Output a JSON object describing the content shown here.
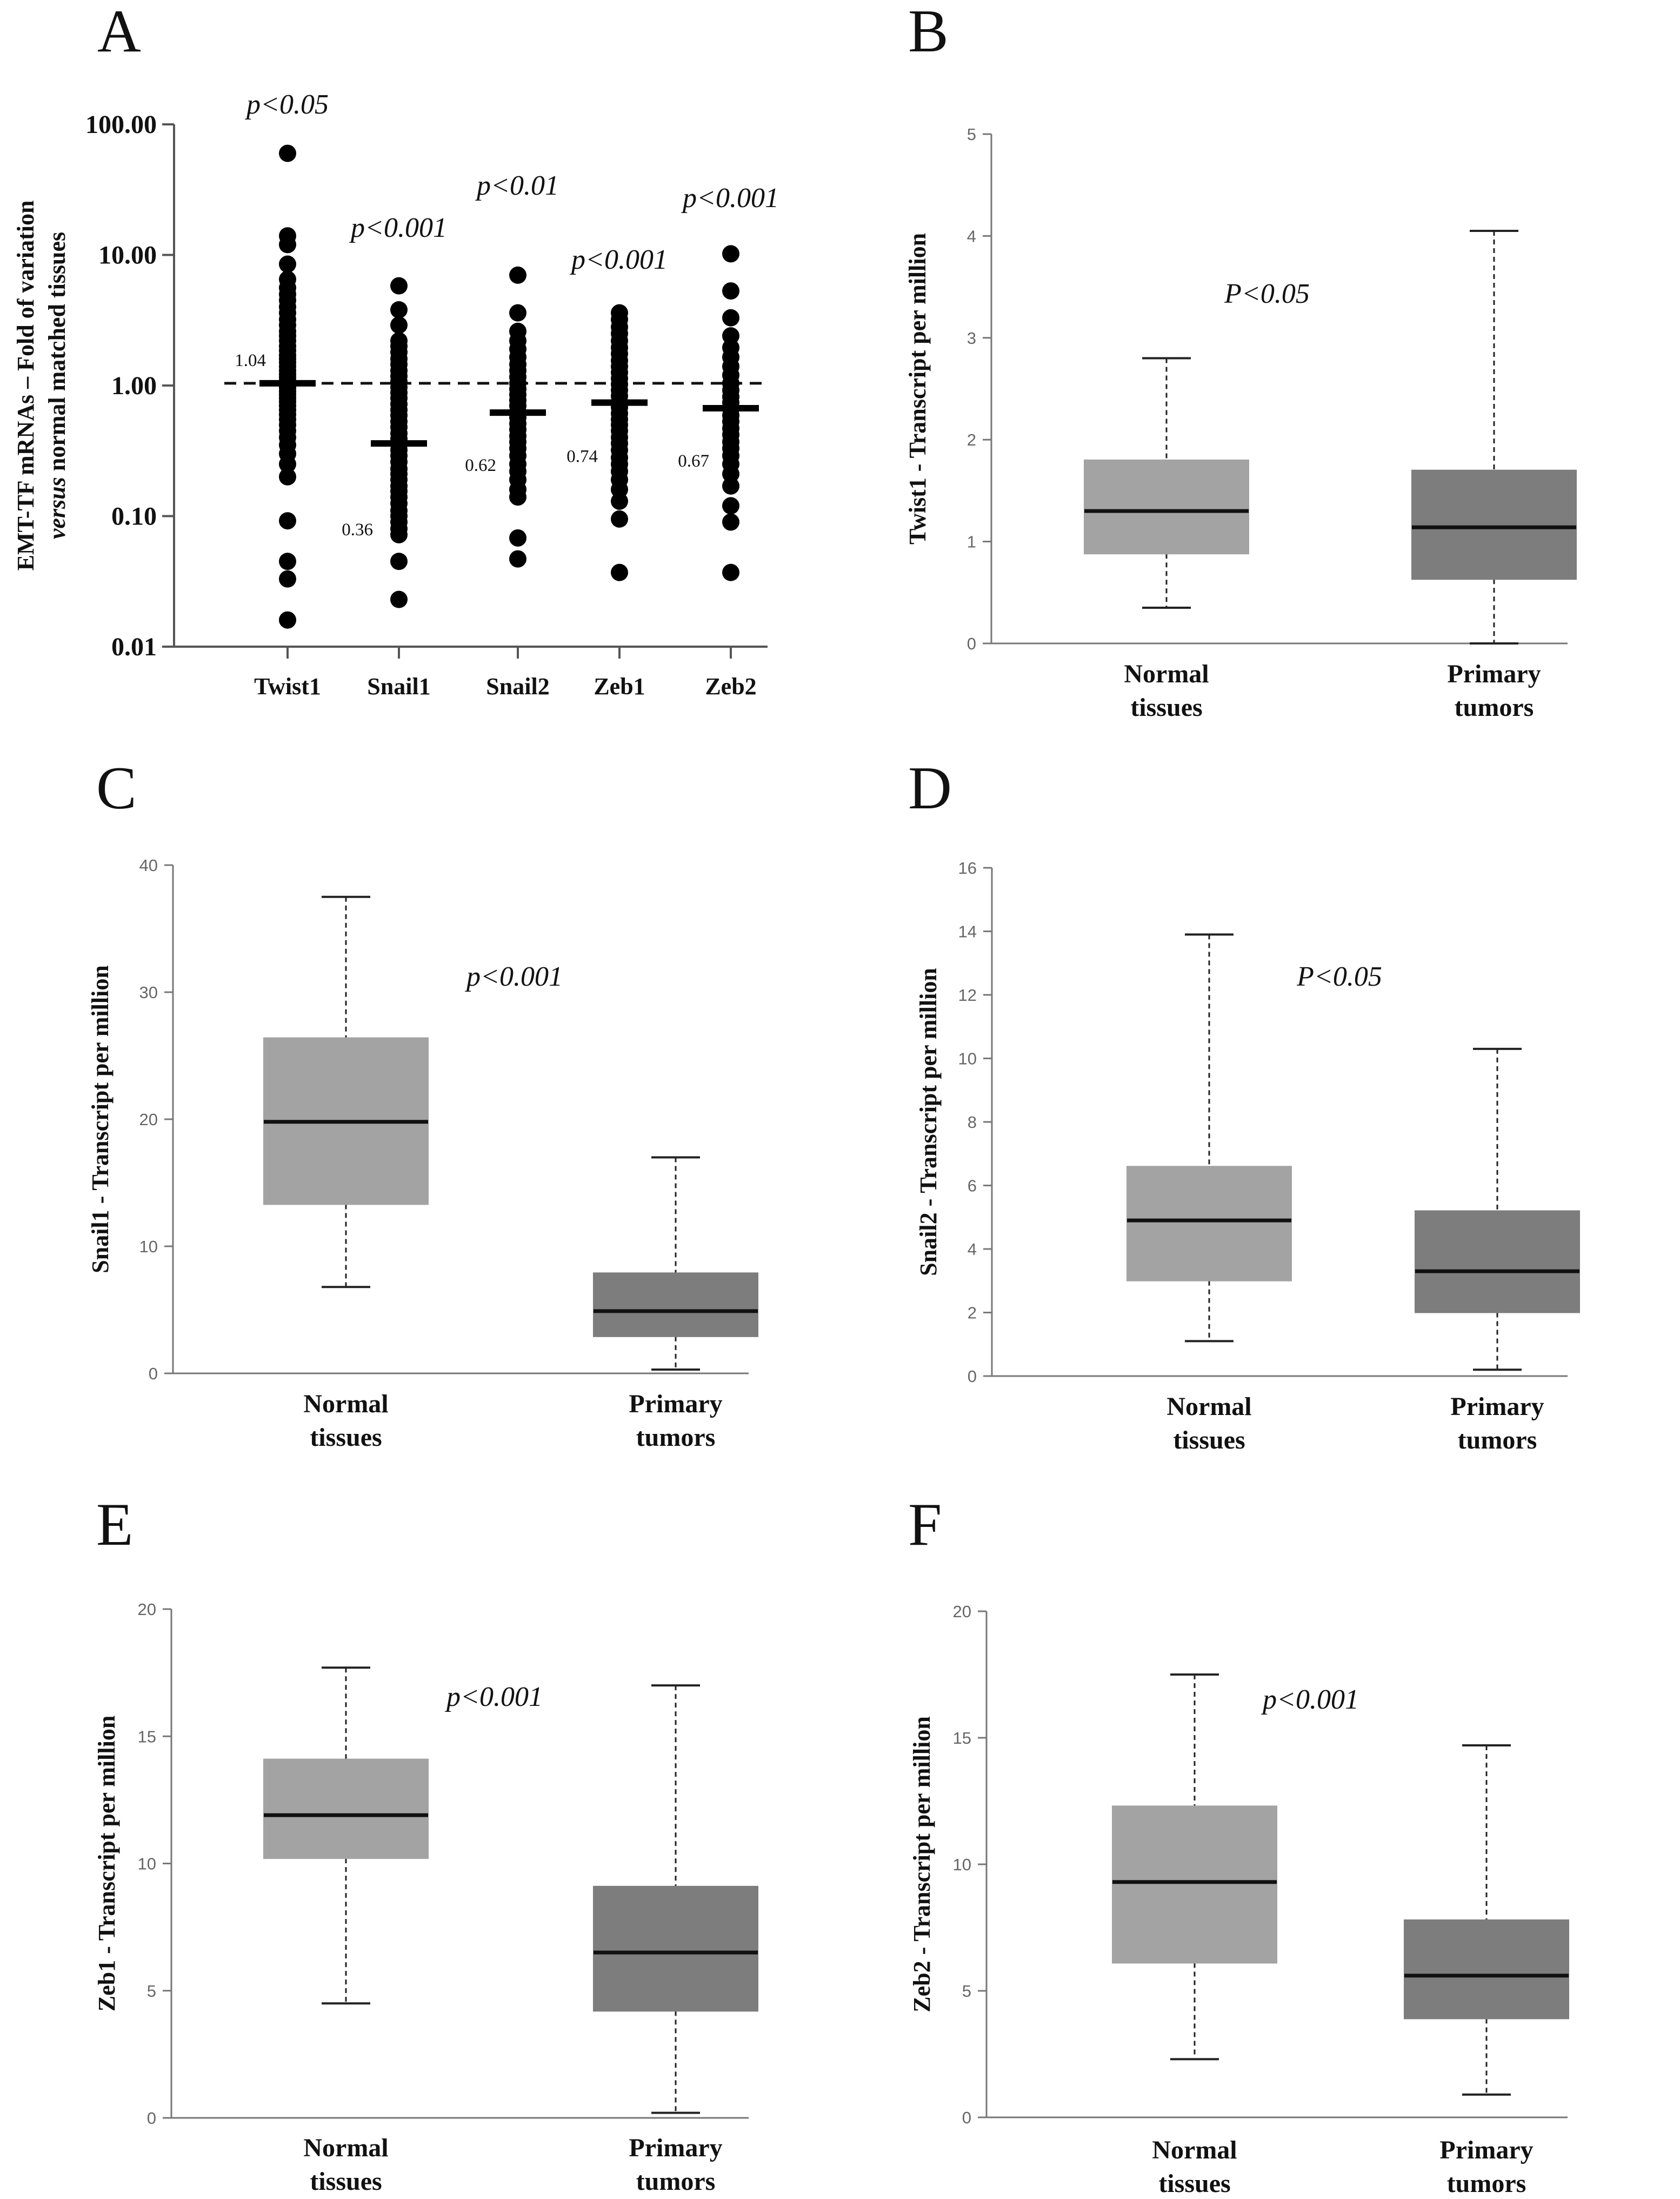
{
  "chart_data": [
    {
      "panel": "A",
      "type": "scatter",
      "yscale": "log",
      "ylim": [
        0.01,
        100
      ],
      "yticks": [
        "0.01",
        "0.10",
        "1.00",
        "10.00",
        "100.00"
      ],
      "ylabel_line1": "EMT-TF mRNAs – Fold of variation",
      "ylabel_line2_italic": "versus",
      "ylabel_line2_rest": " normal matched tissues",
      "reference_line": 1.04,
      "categories": [
        "Twist1",
        "Snail1",
        "Snail2",
        "Zeb1",
        "Zeb2"
      ],
      "medians": [
        1.04,
        0.36,
        0.62,
        0.74,
        0.67
      ],
      "median_labels": [
        "1.04",
        "0.36",
        "0.62",
        "0.74",
        "0.67"
      ],
      "pvalues": [
        "p<0.05",
        "p<0.001",
        "p<0.01",
        "p<0.001",
        "p<0.001"
      ],
      "series": [
        {
          "name": "Twist1",
          "values": [
            60,
            14,
            12,
            8.5,
            6.5,
            5.6,
            5,
            4.5,
            4,
            3.6,
            3.2,
            2.9,
            2.6,
            2.4,
            2.2,
            2,
            1.85,
            1.7,
            1.6,
            1.5,
            1.4,
            1.3,
            1.22,
            1.15,
            1.08,
            1.02,
            0.96,
            0.9,
            0.85,
            0.8,
            0.75,
            0.7,
            0.65,
            0.6,
            0.55,
            0.5,
            0.45,
            0.4,
            0.35,
            0.3,
            0.25,
            0.2,
            0.092,
            0.045,
            0.033,
            0.016
          ]
        },
        {
          "name": "Snail1",
          "values": [
            5.8,
            3.8,
            2.9,
            2.2,
            2,
            1.8,
            1.6,
            1.45,
            1.3,
            1.18,
            1.07,
            0.97,
            0.88,
            0.8,
            0.72,
            0.65,
            0.59,
            0.53,
            0.48,
            0.43,
            0.39,
            0.35,
            0.32,
            0.29,
            0.26,
            0.23,
            0.21,
            0.19,
            0.17,
            0.155,
            0.14,
            0.125,
            0.11,
            0.1,
            0.09,
            0.08,
            0.072,
            0.045,
            0.023
          ]
        },
        {
          "name": "Snail2",
          "values": [
            7,
            3.6,
            2.6,
            2.2,
            1.9,
            1.65,
            1.45,
            1.3,
            1.16,
            1.04,
            0.94,
            0.85,
            0.77,
            0.7,
            0.63,
            0.57,
            0.51,
            0.46,
            0.41,
            0.37,
            0.33,
            0.29,
            0.25,
            0.22,
            0.19,
            0.16,
            0.14,
            0.068,
            0.047
          ]
        },
        {
          "name": "Zeb1",
          "values": [
            3.6,
            3.2,
            2.8,
            2.5,
            2.2,
            1.95,
            1.75,
            1.55,
            1.4,
            1.26,
            1.13,
            1.02,
            0.92,
            0.83,
            0.75,
            0.68,
            0.61,
            0.55,
            0.5,
            0.45,
            0.4,
            0.36,
            0.32,
            0.28,
            0.25,
            0.22,
            0.19,
            0.16,
            0.13,
            0.095,
            0.037
          ]
        },
        {
          "name": "Zeb2",
          "values": [
            10.2,
            5.3,
            3.3,
            2.4,
            1.95,
            1.65,
            1.4,
            1.2,
            1.04,
            0.92,
            0.82,
            0.74,
            0.66,
            0.59,
            0.53,
            0.47,
            0.42,
            0.37,
            0.33,
            0.29,
            0.25,
            0.21,
            0.17,
            0.12,
            0.09,
            0.037
          ]
        }
      ]
    },
    {
      "panel": "B",
      "type": "box",
      "ylabel": "Twist1 - Transcript per million",
      "ylim": [
        0,
        5
      ],
      "yticks": [
        "0",
        "1",
        "2",
        "3",
        "4",
        "5"
      ],
      "pvalue": "P<0.05",
      "boxes": [
        {
          "label_line1": "Normal",
          "label_line2": "tissues",
          "min": 0.35,
          "q1": 0.88,
          "median": 1.3,
          "q3": 1.8,
          "max": 2.8,
          "color": "#a3a3a3"
        },
        {
          "label_line1": "Primary",
          "label_line2": "tumors",
          "min": 0.0,
          "q1": 0.63,
          "median": 1.14,
          "q3": 1.7,
          "max": 4.05,
          "color": "#7d7d7d"
        }
      ]
    },
    {
      "panel": "C",
      "type": "box",
      "ylabel": "Snail1 - Transcript per million",
      "ylim": [
        0,
        40
      ],
      "yticks": [
        "0",
        "10",
        "20",
        "30",
        "40"
      ],
      "pvalue": "p<0.001",
      "boxes": [
        {
          "label_line1": "Normal",
          "label_line2": "tissues",
          "min": 6.8,
          "q1": 13.3,
          "median": 19.8,
          "q3": 26.4,
          "max": 37.5,
          "color": "#a3a3a3"
        },
        {
          "label_line1": "Primary",
          "label_line2": "tumors",
          "min": 0.3,
          "q1": 2.9,
          "median": 4.9,
          "q3": 7.9,
          "max": 17.0,
          "color": "#7d7d7d"
        }
      ]
    },
    {
      "panel": "D",
      "type": "box",
      "ylabel": "Snail2 - Transcript per million",
      "ylim": [
        0,
        16
      ],
      "yticks": [
        "0",
        "2",
        "4",
        "6",
        "8",
        "10",
        "12",
        "14",
        "16"
      ],
      "pvalue": "P<0.05",
      "boxes": [
        {
          "label_line1": "Normal",
          "label_line2": "tissues",
          "min": 1.1,
          "q1": 3.0,
          "median": 4.9,
          "q3": 6.6,
          "max": 13.9,
          "color": "#a3a3a3"
        },
        {
          "label_line1": "Primary",
          "label_line2": "tumors",
          "min": 0.2,
          "q1": 2.0,
          "median": 3.3,
          "q3": 5.2,
          "max": 10.3,
          "color": "#7d7d7d"
        }
      ]
    },
    {
      "panel": "E",
      "type": "box",
      "ylabel": "Zeb1 - Transcript per million",
      "ylim": [
        0,
        20
      ],
      "yticks": [
        "0",
        "5",
        "10",
        "15",
        "20"
      ],
      "pvalue": "p<0.001",
      "boxes": [
        {
          "label_line1": "Normal",
          "label_line2": "tissues",
          "min": 4.5,
          "q1": 10.2,
          "median": 11.9,
          "q3": 14.1,
          "max": 17.7,
          "color": "#a3a3a3"
        },
        {
          "label_line1": "Primary",
          "label_line2": "tumors",
          "min": 0.2,
          "q1": 4.2,
          "median": 6.5,
          "q3": 9.1,
          "max": 17.0,
          "color": "#7d7d7d"
        }
      ]
    },
    {
      "panel": "F",
      "type": "box",
      "ylabel": "Zeb2 - Transcript per million",
      "ylim": [
        0,
        20
      ],
      "yticks": [
        "0",
        "5",
        "10",
        "15",
        "20"
      ],
      "pvalue": "p<0.001",
      "boxes": [
        {
          "label_line1": "Normal",
          "label_line2": "tissues",
          "min": 2.3,
          "q1": 6.1,
          "median": 9.3,
          "q3": 12.3,
          "max": 17.5,
          "color": "#a3a3a3"
        },
        {
          "label_line1": "Primary",
          "label_line2": "tumors",
          "min": 0.9,
          "q1": 3.9,
          "median": 5.6,
          "q3": 7.8,
          "max": 14.7,
          "color": "#7d7d7d"
        }
      ]
    }
  ]
}
